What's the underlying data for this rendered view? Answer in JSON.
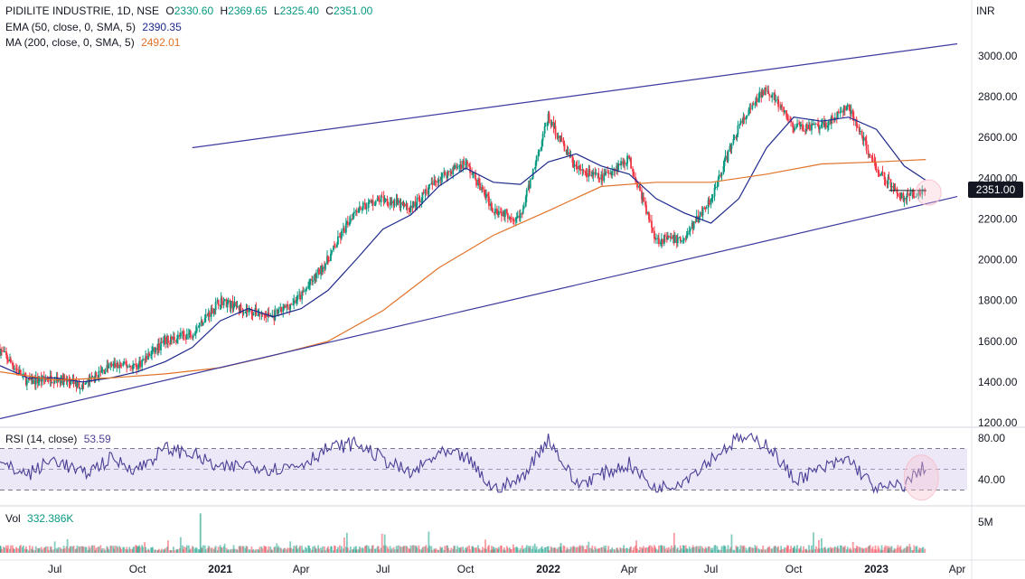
{
  "header": {
    "symbol": "PIDILITE INDUSTRIE, 1D, NSE",
    "o_label": "O",
    "o_value": "2330.60",
    "h_label": "H",
    "h_value": "2369.65",
    "l_label": "L",
    "l_value": "2325.40",
    "c_label": "C",
    "c_value": "2351.00",
    "currency": "INR"
  },
  "indicators": [
    {
      "label": "EMA (50, close, 0, SMA, 5)",
      "value": "2390.35",
      "color": "#1e2a8c"
    },
    {
      "label": "MA (200, close, 0, SMA, 5)",
      "value": "2492.01",
      "color": "#e2732a"
    }
  ],
  "rsi_legend": {
    "label": "RSI (14, close)",
    "value": "53.59",
    "color": "#4a3f96"
  },
  "vol_legend": {
    "label": "Vol",
    "value": "332.386K"
  },
  "last_price_tag": "2351.00",
  "colors": {
    "up": "#089981",
    "down": "#f23645",
    "trendline": "#3d3a9e",
    "ema": "#1e2a8c",
    "ma": "#e2732a",
    "rsi": "#4a3f96",
    "rsi_band": "#ece8f8",
    "highlight": "#f7c3d0"
  },
  "chart_data": [
    {
      "type": "line",
      "title": "PIDILITE INDUSTRIE, 1D, NSE",
      "ylim": [
        1200,
        3000
      ],
      "y_ticks": [
        "3000.00",
        "2800.00",
        "2600.00",
        "2400.00",
        "2200.00",
        "2000.00",
        "1800.00",
        "1600.00",
        "1400.00",
        "1200.00"
      ],
      "x_ticks": [
        "Jul",
        "Oct",
        "2021",
        "Apr",
        "Jul",
        "Oct",
        "2022",
        "Apr",
        "Jul",
        "Oct",
        "2023",
        "Apr"
      ],
      "x_range": [
        "2020-05-01",
        "2023-04-12"
      ],
      "series": [
        {
          "name": "EMA (50, close, 0, SMA, 5)",
          "x": [
            "2020-05-01",
            "2020-06-01",
            "2020-07-01",
            "2020-08-01",
            "2020-09-01",
            "2020-10-01",
            "2020-11-01",
            "2020-12-01",
            "2021-01-01",
            "2021-02-01",
            "2021-03-01",
            "2021-04-01",
            "2021-05-01",
            "2021-06-01",
            "2021-07-01",
            "2021-08-01",
            "2021-09-01",
            "2021-10-01",
            "2021-11-01",
            "2021-12-01",
            "2022-01-01",
            "2022-02-01",
            "2022-03-01",
            "2022-04-01",
            "2022-05-01",
            "2022-06-01",
            "2022-07-01",
            "2022-08-01",
            "2022-09-01",
            "2022-10-01",
            "2022-11-01",
            "2022-12-01",
            "2023-01-01",
            "2023-02-01",
            "2023-02-25"
          ],
          "y": [
            1480,
            1420,
            1420,
            1400,
            1420,
            1450,
            1500,
            1570,
            1700,
            1760,
            1720,
            1760,
            1850,
            2000,
            2150,
            2220,
            2360,
            2450,
            2380,
            2370,
            2480,
            2520,
            2460,
            2420,
            2300,
            2230,
            2180,
            2300,
            2550,
            2700,
            2680,
            2700,
            2640,
            2460,
            2390
          ]
        },
        {
          "name": "MA (200, close, 0, SMA, 5)",
          "x": [
            "2020-05-01",
            "2020-07-01",
            "2020-09-01",
            "2020-11-01",
            "2021-01-01",
            "2021-03-01",
            "2021-05-01",
            "2021-07-01",
            "2021-09-01",
            "2021-11-01",
            "2022-01-01",
            "2022-03-01",
            "2022-05-01",
            "2022-07-01",
            "2022-09-01",
            "2022-11-01",
            "2023-01-01",
            "2023-02-25"
          ],
          "y": [
            1450,
            1410,
            1420,
            1440,
            1470,
            1530,
            1600,
            1750,
            1960,
            2120,
            2240,
            2360,
            2380,
            2380,
            2420,
            2470,
            2480,
            2492
          ]
        },
        {
          "name": "Upper channel",
          "x": [
            "2020-12-01",
            "2023-04-01"
          ],
          "y": [
            2550,
            3060
          ]
        },
        {
          "name": "Lower channel",
          "x": [
            "2020-05-01",
            "2023-04-01"
          ],
          "y": [
            1220,
            2310
          ]
        },
        {
          "name": "Close (approx.)",
          "x": [
            "2020-05-01",
            "2020-06-01",
            "2020-07-01",
            "2020-08-01",
            "2020-09-01",
            "2020-10-01",
            "2020-11-01",
            "2020-12-01",
            "2021-01-01",
            "2021-02-01",
            "2021-03-01",
            "2021-04-01",
            "2021-05-01",
            "2021-06-01",
            "2021-07-01",
            "2021-08-01",
            "2021-09-01",
            "2021-10-01",
            "2021-11-01",
            "2021-12-01",
            "2022-01-01",
            "2022-02-01",
            "2022-03-01",
            "2022-04-01",
            "2022-05-01",
            "2022-06-01",
            "2022-07-01",
            "2022-08-01",
            "2022-09-01",
            "2022-10-01",
            "2022-11-01",
            "2022-12-01",
            "2023-01-01",
            "2023-02-01",
            "2023-02-25"
          ],
          "y": [
            1560,
            1400,
            1420,
            1380,
            1480,
            1480,
            1600,
            1640,
            1800,
            1750,
            1720,
            1820,
            2000,
            2250,
            2300,
            2250,
            2400,
            2480,
            2250,
            2200,
            2700,
            2450,
            2400,
            2500,
            2100,
            2100,
            2300,
            2650,
            2850,
            2650,
            2650,
            2750,
            2450,
            2300,
            2351
          ]
        }
      ]
    },
    {
      "type": "line",
      "title": "RSI (14, close)",
      "ylim": [
        20,
        90
      ],
      "y_ticks": [
        "80.00",
        "40.00"
      ],
      "bands": [
        70,
        30
      ],
      "series": [
        {
          "name": "RSI (14, close)",
          "x": [
            "2020-05-01",
            "2020-06-01",
            "2020-07-01",
            "2020-08-01",
            "2020-09-01",
            "2020-10-01",
            "2020-11-01",
            "2020-12-01",
            "2021-01-01",
            "2021-02-01",
            "2021-03-01",
            "2021-04-01",
            "2021-05-01",
            "2021-06-01",
            "2021-07-01",
            "2021-08-01",
            "2021-09-01",
            "2021-10-01",
            "2021-11-01",
            "2021-12-01",
            "2022-01-01",
            "2022-02-01",
            "2022-03-01",
            "2022-04-01",
            "2022-05-01",
            "2022-06-01",
            "2022-07-01",
            "2022-08-01",
            "2022-09-01",
            "2022-10-01",
            "2022-11-01",
            "2022-12-01",
            "2023-01-01",
            "2023-02-01",
            "2023-02-25"
          ],
          "y": [
            55,
            45,
            60,
            45,
            60,
            50,
            70,
            65,
            50,
            55,
            50,
            55,
            70,
            75,
            60,
            45,
            65,
            62,
            30,
            40,
            80,
            35,
            45,
            55,
            30,
            40,
            60,
            80,
            75,
            40,
            50,
            60,
            30,
            35,
            53.59
          ]
        }
      ]
    },
    {
      "type": "bar",
      "title": "Vol",
      "y_ticks": [
        "5M"
      ],
      "series": [
        {
          "name": "Vol",
          "x": [
            "2020-05-01",
            "2020-10-01",
            "2020-12-10",
            "2021-06-01",
            "2021-11-01",
            "2022-01-15",
            "2022-06-01",
            "2022-10-01",
            "2023-01-15"
          ],
          "y": [
            1.2,
            1.0,
            6.5,
            1.1,
            1.0,
            1.6,
            1.2,
            0.9,
            0.8
          ]
        }
      ]
    }
  ]
}
